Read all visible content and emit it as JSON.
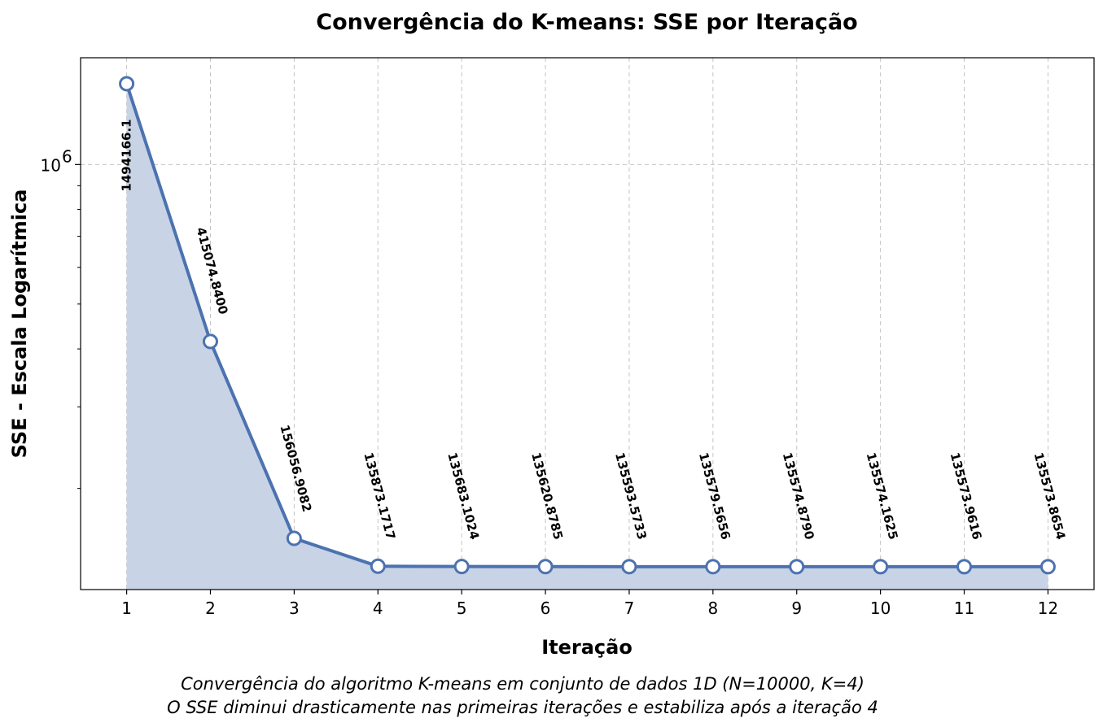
{
  "chart_data": {
    "type": "line",
    "title": "Convergência do K-means: SSE por Iteração",
    "xlabel": "Iteração",
    "ylabel": "SSE - Escala Logarítmica",
    "yscale": "log",
    "ylim": [
      121000,
      1700000
    ],
    "x": [
      1,
      2,
      3,
      4,
      5,
      6,
      7,
      8,
      9,
      10,
      11,
      12
    ],
    "values": [
      1494166.1,
      415074.84,
      156056.9082,
      135873.1717,
      135683.1024,
      135620.8785,
      135593.5733,
      135579.5656,
      135574.879,
      135574.1625,
      135573.9616,
      135573.8654
    ],
    "data_labels": [
      "1494166.1",
      "415074.8400",
      "156056.9082",
      "135873.1717",
      "135683.1024",
      "135620.8785",
      "135593.5733",
      "135579.5656",
      "135574.8790",
      "135574.1625",
      "135573.9616",
      "135573.8654"
    ],
    "x_ticks": [
      "1",
      "2",
      "3",
      "4",
      "5",
      "6",
      "7",
      "8",
      "9",
      "10",
      "11",
      "12"
    ],
    "y_tick_base": "10",
    "y_tick_exp": "6",
    "grid": true,
    "fill_under": true,
    "line_color": "#4c72b0",
    "fill_color": "#c8d3e6",
    "marker_face": "#ffffff"
  },
  "caption": {
    "line1": "Convergência do algoritmo K-means em conjunto de dados 1D (N=10000, K=4)",
    "line2": "O SSE diminui drasticamente nas primeiras iterações e estabiliza após a iteração 4"
  }
}
